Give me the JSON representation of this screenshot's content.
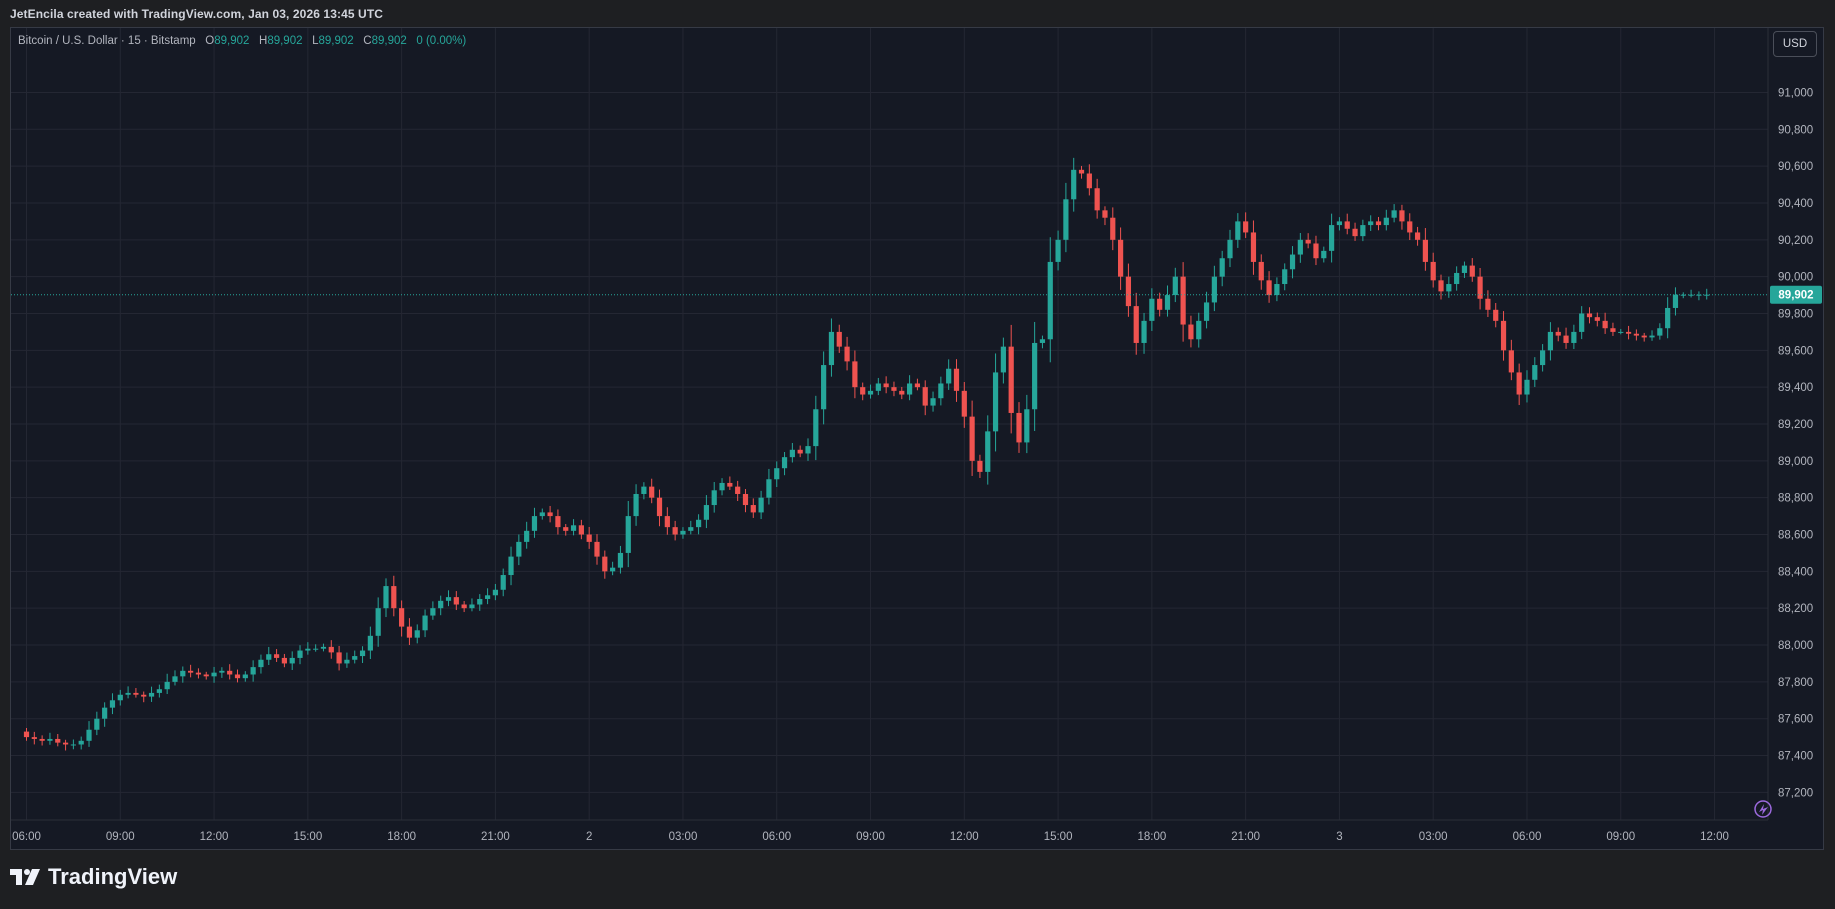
{
  "header": {
    "caption": "JetEncila created with TradingView.com, Jan 03, 2026 13:45 UTC"
  },
  "legend": {
    "symbol": "Bitcoin / U.S. Dollar · 15 · Bitstamp",
    "o_label": "O",
    "o_value": "89,902",
    "h_label": "H",
    "h_value": "89,902",
    "l_label": "L",
    "l_value": "89,902",
    "c_label": "C",
    "c_value": "89,902",
    "change": "0 (0.00%)"
  },
  "currency_button": "USD",
  "brand": {
    "name": "TradingView"
  },
  "colors": {
    "up": "#26a69a",
    "down": "#ef5350",
    "background": "#151924",
    "grid": "#242733",
    "axis_text": "#b2b5be",
    "price_line": "#26a69a"
  },
  "chart_data": {
    "type": "candlestick",
    "title": "Bitcoin / U.S. Dollar · 15 · Bitstamp",
    "ylim": [
      87050,
      91350
    ],
    "y_ticks": [
      91000,
      90800,
      90600,
      90400,
      90200,
      90000,
      89800,
      89600,
      89400,
      89200,
      89000,
      88800,
      88600,
      88400,
      88200,
      88000,
      87800,
      87600,
      87400,
      87200
    ],
    "y_tick_labels": [
      "91,000",
      "90,800",
      "90,600",
      "90,400",
      "90,200",
      "90,000",
      "89,800",
      "89,600",
      "89,400",
      "89,200",
      "89,000",
      "88,800",
      "88,600",
      "88,400",
      "88,200",
      "88,000",
      "87,800",
      "87,600",
      "87,400",
      "87,200"
    ],
    "x_ticks": [
      {
        "label": "06:00",
        "bar": 0
      },
      {
        "label": "09:00",
        "bar": 12
      },
      {
        "label": "12:00",
        "bar": 24
      },
      {
        "label": "15:00",
        "bar": 36
      },
      {
        "label": "18:00",
        "bar": 48
      },
      {
        "label": "21:00",
        "bar": 60
      },
      {
        "label": "2",
        "bar": 72
      },
      {
        "label": "03:00",
        "bar": 84
      },
      {
        "label": "06:00",
        "bar": 96
      },
      {
        "label": "09:00",
        "bar": 108
      },
      {
        "label": "12:00",
        "bar": 120
      },
      {
        "label": "15:00",
        "bar": 132
      },
      {
        "label": "18:00",
        "bar": 144
      },
      {
        "label": "21:00",
        "bar": 156
      },
      {
        "label": "3",
        "bar": 168
      },
      {
        "label": "03:00",
        "bar": 180
      },
      {
        "label": "06:00",
        "bar": 192
      },
      {
        "label": "09:00",
        "bar": 204
      },
      {
        "label": "12:00",
        "bar": 216
      }
    ],
    "grid": true,
    "last_price": 89902,
    "last_price_label": "89,902",
    "anchor_close": 87530,
    "closes": [
      87500,
      87490,
      87480,
      87490,
      87470,
      87460,
      87460,
      87480,
      87540,
      87600,
      87660,
      87700,
      87730,
      87740,
      87730,
      87720,
      87740,
      87760,
      87800,
      87830,
      87860,
      87850,
      87840,
      87830,
      87850,
      87860,
      87840,
      87820,
      87840,
      87880,
      87920,
      87950,
      87930,
      87900,
      87930,
      87970,
      87980,
      87980,
      87990,
      87960,
      87900,
      87920,
      87940,
      87970,
      88050,
      88200,
      88320,
      88200,
      88100,
      88040,
      88080,
      88160,
      88200,
      88240,
      88260,
      88220,
      88200,
      88220,
      88250,
      88270,
      88300,
      88380,
      88480,
      88560,
      88620,
      88700,
      88720,
      88700,
      88640,
      88620,
      88650,
      88600,
      88560,
      88480,
      88400,
      88420,
      88500,
      88700,
      88820,
      88860,
      88800,
      88700,
      88640,
      88600,
      88620,
      88640,
      88680,
      88760,
      88840,
      88880,
      88860,
      88820,
      88760,
      88720,
      88800,
      88900,
      88960,
      89020,
      89060,
      89040,
      89080,
      89280,
      89520,
      89700,
      89620,
      89540,
      89400,
      89360,
      89380,
      89420,
      89400,
      89380,
      89360,
      89420,
      89400,
      89300,
      89340,
      89420,
      89500,
      89380,
      89240,
      89000,
      88940,
      89160,
      89480,
      89620,
      89260,
      89100,
      89280,
      89640,
      89660,
      90080,
      90200,
      90420,
      90580,
      90560,
      90480,
      90360,
      90320,
      90200,
      90000,
      89840,
      89640,
      89760,
      89880,
      89820,
      89900,
      90000,
      89740,
      89660,
      89760,
      89860,
      90000,
      90100,
      90200,
      90300,
      90240,
      90080,
      89980,
      89900,
      89960,
      90040,
      90120,
      90200,
      90180,
      90100,
      90140,
      90280,
      90300,
      90260,
      90220,
      90280,
      90300,
      90280,
      90320,
      90360,
      90300,
      90240,
      90200,
      90080,
      89980,
      89920,
      89960,
      90020,
      90060,
      90000,
      89880,
      89820,
      89760,
      89600,
      89480,
      89360,
      89440,
      89520,
      89600,
      89700,
      89680,
      89640,
      89700,
      89800,
      89780,
      89760,
      89720,
      89700,
      89700,
      89690,
      89680,
      89670,
      89680,
      89720,
      89830,
      89902,
      89902,
      89902,
      89902,
      89902
    ]
  }
}
